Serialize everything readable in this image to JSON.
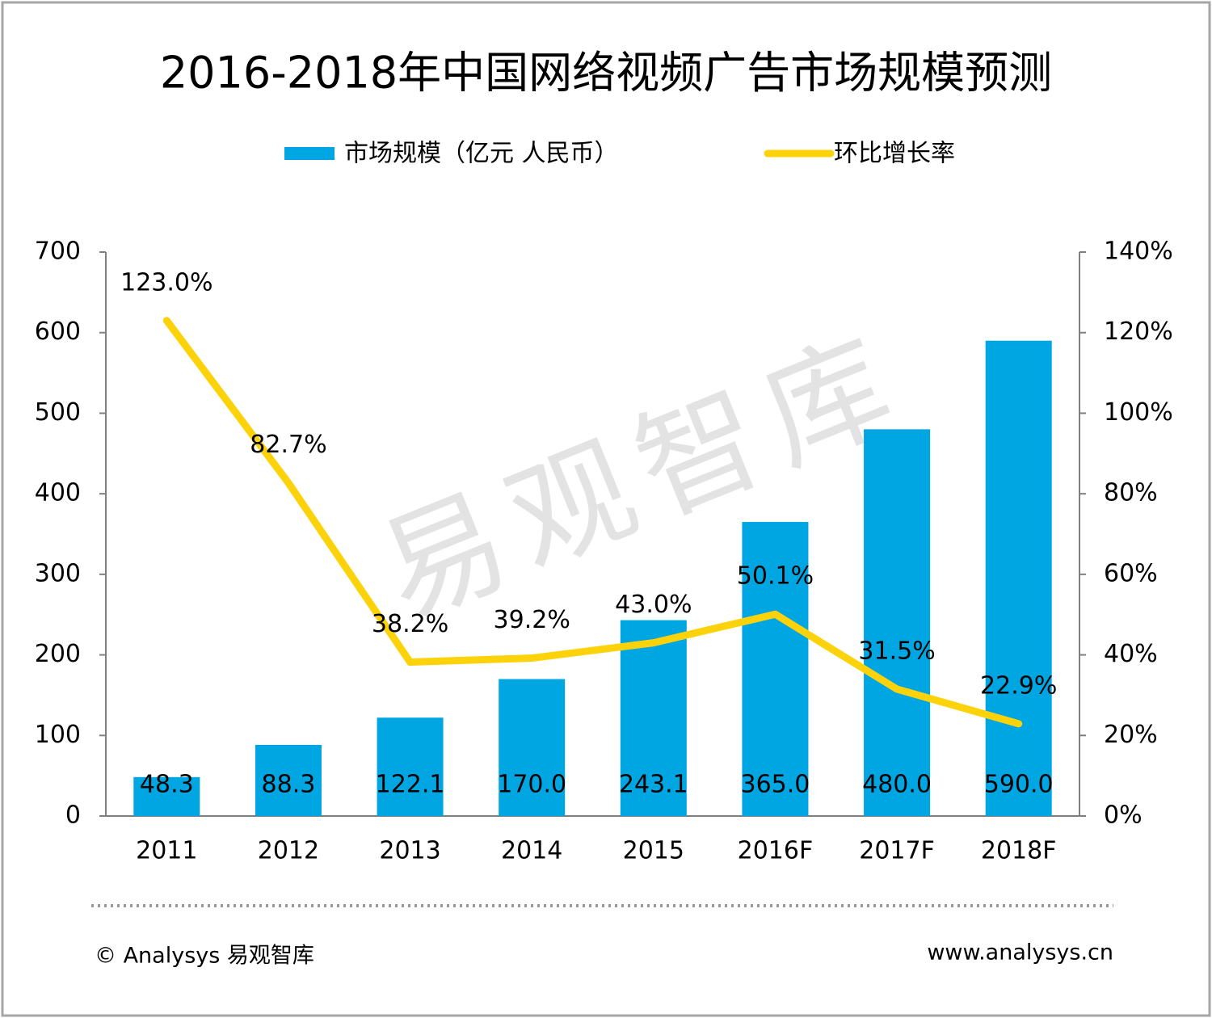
{
  "chart_data": {
    "type": "bar",
    "title": "2016-2018年中国网络视频广告市场规模预测",
    "categories": [
      "2011",
      "2012",
      "2013",
      "2014",
      "2015",
      "2016F",
      "2017F",
      "2018F"
    ],
    "series": [
      {
        "name": "市场规模（亿元 人民币）",
        "type": "bar",
        "color": "#00a6e2",
        "values": [
          48.3,
          88.3,
          122.1,
          170,
          243.1,
          365,
          480,
          590
        ],
        "value_labels": [
          "48.3",
          "88.3",
          "122.1",
          "170.0",
          "243.1",
          "365.0",
          "480.0",
          "590.0"
        ]
      },
      {
        "name": "环比增长率",
        "type": "line",
        "axis": "y2",
        "color": "#fcd20a",
        "values": [
          123,
          82.7,
          38.2,
          39.2,
          43,
          50.1,
          31.5,
          22.9
        ],
        "value_labels": [
          "123.0%",
          "82.7%",
          "38.2%",
          "39.2%",
          "43.0%",
          "50.1%",
          "31.5%",
          "22.9%"
        ]
      }
    ],
    "ylim": [
      0,
      700
    ],
    "yticks": [
      0,
      100,
      200,
      300,
      400,
      500,
      600,
      700
    ],
    "y2lim": [
      0,
      140
    ],
    "y2ticks": [
      {
        "value": 0,
        "label": "0%"
      },
      {
        "value": 20,
        "label": "20%"
      },
      {
        "value": 40,
        "label": "40%"
      },
      {
        "value": 60,
        "label": "60%"
      },
      {
        "value": 80,
        "label": "80%"
      },
      {
        "value": 100,
        "label": "100%"
      },
      {
        "value": 120,
        "label": "120%"
      },
      {
        "value": 140,
        "label": "140%"
      }
    ],
    "grid": false,
    "legend": "top",
    "watermark": "易观智库",
    "source": "© Analysys 易观智库",
    "website": "www.analysys.cn"
  }
}
